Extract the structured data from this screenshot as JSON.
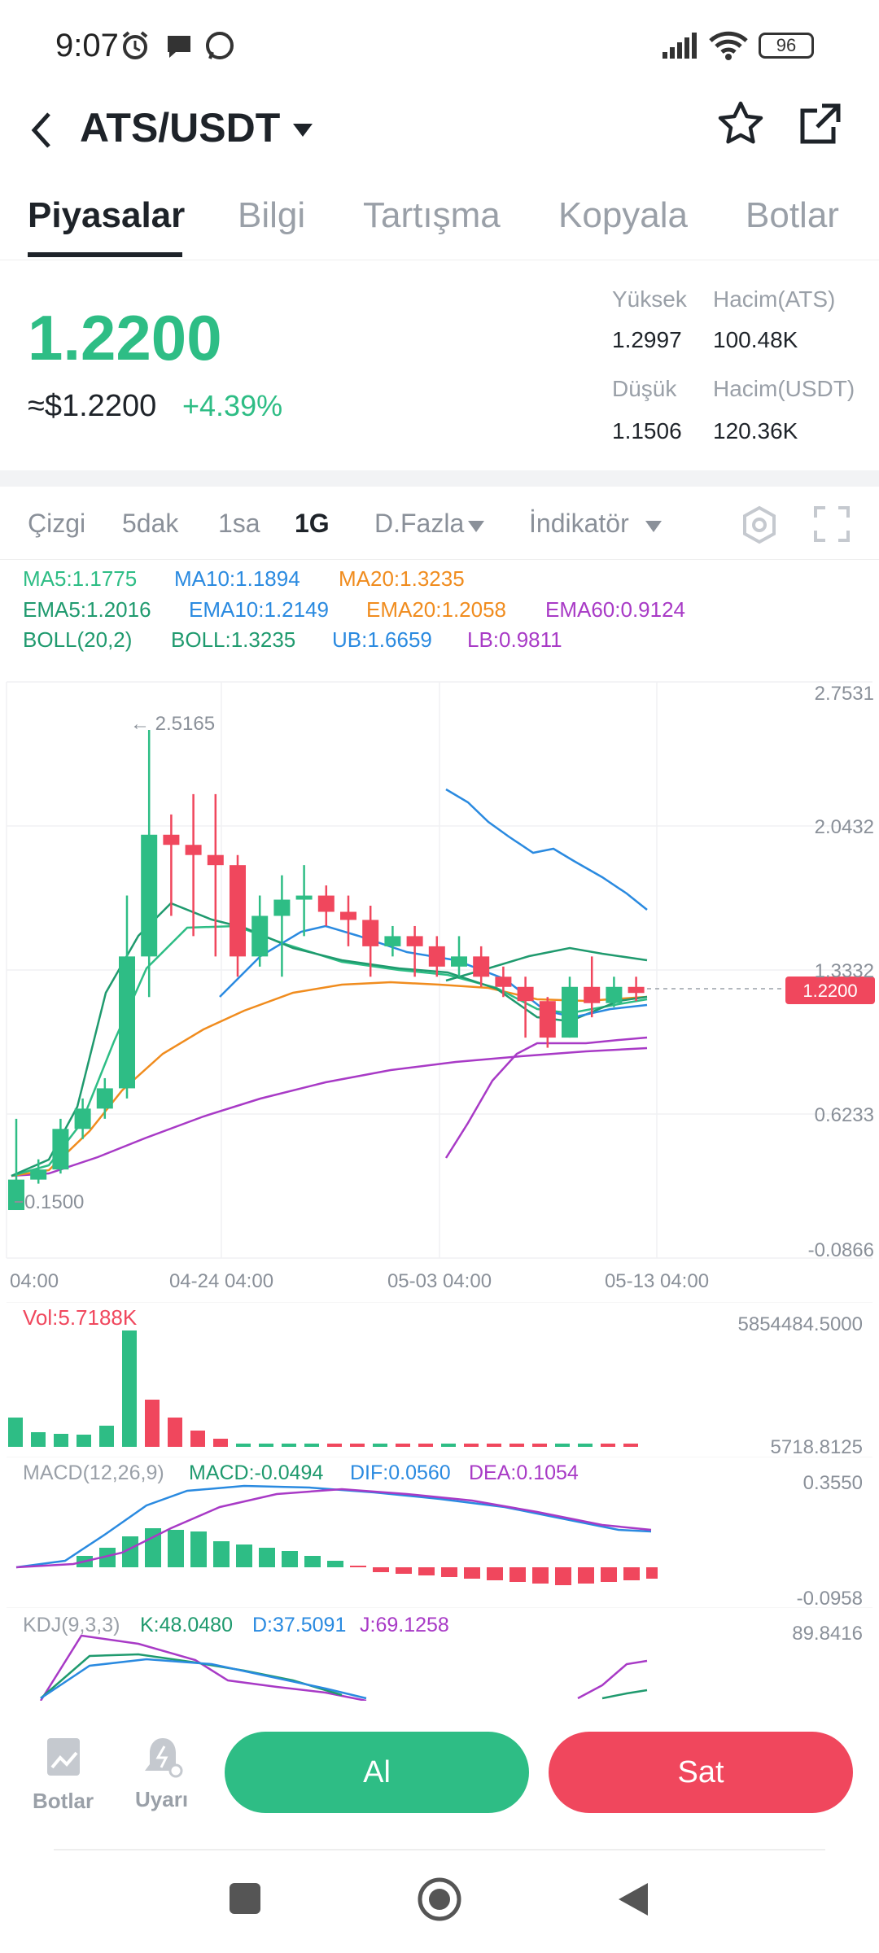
{
  "status_bar": {
    "time": "9:07",
    "battery": "96"
  },
  "header": {
    "pair": "ATS/USDT"
  },
  "tabs": [
    "Piyasalar",
    "Bilgi",
    "Tartışma",
    "Kopyala",
    "Botlar"
  ],
  "price": {
    "last": "1.2200",
    "usd": "≈$1.2200",
    "change": "+4.39%",
    "high_label": "Yüksek",
    "high": "1.2997",
    "low_label": "Düşük",
    "low": "1.1506",
    "vol_base_label": "Hacim(ATS)",
    "vol_base": "100.48K",
    "vol_quote_label": "Hacim(USDT)",
    "vol_quote": "120.36K"
  },
  "toolbar": {
    "line": "Çizgi",
    "m5": "5dak",
    "h1": "1sa",
    "d1": "1G",
    "more": "D.Fazla",
    "indicator": "İndikatör"
  },
  "indicators": {
    "ma5": "MA5:1.1775",
    "ma10": "MA10:1.1894",
    "ma20": "MA20:1.3235",
    "ema5": "EMA5:1.2016",
    "ema10": "EMA10:1.2149",
    "ema20": "EMA20:1.2058",
    "ema60": "EMA60:0.9124",
    "boll": "BOLL(20,2)",
    "boll_mid": "BOLL:1.3235",
    "ub": "UB:1.6659",
    "lb": "LB:0.9811"
  },
  "colors": {
    "up": "#2ebd85",
    "down": "#f0475d",
    "blue": "#2a8ae0",
    "orange": "#f08c1e",
    "purple": "#a83ac6"
  },
  "chart_data": {
    "type": "candlestick",
    "y_ticks": [
      "2.7531",
      "2.0432",
      "1.3332",
      "0.6233",
      "-0.0866"
    ],
    "x_ticks": [
      "04:00",
      "04-24 04:00",
      "05-03 04:00",
      "05-13 04:00"
    ],
    "max_label": "← 2.5165",
    "min_label": "0.1500",
    "last_price_tag": "1.2200",
    "candles": [
      {
        "o": 0.15,
        "h": 0.6,
        "l": 0.15,
        "c": 0.3
      },
      {
        "o": 0.3,
        "h": 0.4,
        "l": 0.28,
        "c": 0.35
      },
      {
        "o": 0.35,
        "h": 0.6,
        "l": 0.33,
        "c": 0.55
      },
      {
        "o": 0.55,
        "h": 0.7,
        "l": 0.5,
        "c": 0.65
      },
      {
        "o": 0.65,
        "h": 0.8,
        "l": 0.6,
        "c": 0.75
      },
      {
        "o": 0.75,
        "h": 1.7,
        "l": 0.7,
        "c": 1.4
      },
      {
        "o": 1.4,
        "h": 2.5165,
        "l": 1.2,
        "c": 2.0
      },
      {
        "o": 2.0,
        "h": 2.1,
        "l": 1.6,
        "c": 1.95
      },
      {
        "o": 1.95,
        "h": 2.2,
        "l": 1.5,
        "c": 1.9
      },
      {
        "o": 1.9,
        "h": 2.2,
        "l": 1.4,
        "c": 1.85
      },
      {
        "o": 1.85,
        "h": 1.9,
        "l": 1.3,
        "c": 1.4
      },
      {
        "o": 1.4,
        "h": 1.7,
        "l": 1.35,
        "c": 1.6
      },
      {
        "o": 1.6,
        "h": 1.8,
        "l": 1.3,
        "c": 1.68
      },
      {
        "o": 1.68,
        "h": 1.85,
        "l": 1.5,
        "c": 1.7
      },
      {
        "o": 1.7,
        "h": 1.75,
        "l": 1.55,
        "c": 1.62
      },
      {
        "o": 1.62,
        "h": 1.7,
        "l": 1.45,
        "c": 1.58
      },
      {
        "o": 1.58,
        "h": 1.65,
        "l": 1.3,
        "c": 1.45
      },
      {
        "o": 1.45,
        "h": 1.55,
        "l": 1.4,
        "c": 1.5
      },
      {
        "o": 1.5,
        "h": 1.55,
        "l": 1.3,
        "c": 1.45
      },
      {
        "o": 1.45,
        "h": 1.5,
        "l": 1.3,
        "c": 1.35
      },
      {
        "o": 1.35,
        "h": 1.5,
        "l": 1.3,
        "c": 1.4
      },
      {
        "o": 1.4,
        "h": 1.45,
        "l": 1.25,
        "c": 1.3
      },
      {
        "o": 1.3,
        "h": 1.35,
        "l": 1.2,
        "c": 1.25
      },
      {
        "o": 1.25,
        "h": 1.3,
        "l": 1.0,
        "c": 1.18
      },
      {
        "o": 1.18,
        "h": 1.2,
        "l": 0.95,
        "c": 1.0
      },
      {
        "o": 1.0,
        "h": 1.3,
        "l": 1.0,
        "c": 1.25
      },
      {
        "o": 1.25,
        "h": 1.4,
        "l": 1.1,
        "c": 1.17
      },
      {
        "o": 1.17,
        "h": 1.3,
        "l": 1.15,
        "c": 1.25
      },
      {
        "o": 1.25,
        "h": 1.3,
        "l": 1.18,
        "c": 1.22
      }
    ],
    "volume": {
      "label": "Vol:5.7188K",
      "max": "5854484.5000",
      "min": "5718.8125"
    },
    "macd": {
      "params": "MACD(12,26,9)",
      "macd": "MACD:-0.0494",
      "dif": "DIF:0.0560",
      "dea": "DEA:0.1054",
      "max": "0.3550",
      "min": "-0.0958"
    },
    "kdj": {
      "params": "KDJ(9,3,3)",
      "k": "K:48.0480",
      "d": "D:37.5091",
      "j": "J:69.1258",
      "max": "89.8416"
    }
  },
  "bottom": {
    "bots": "Botlar",
    "alert": "Uyarı",
    "buy": "Al",
    "sell": "Sat"
  }
}
